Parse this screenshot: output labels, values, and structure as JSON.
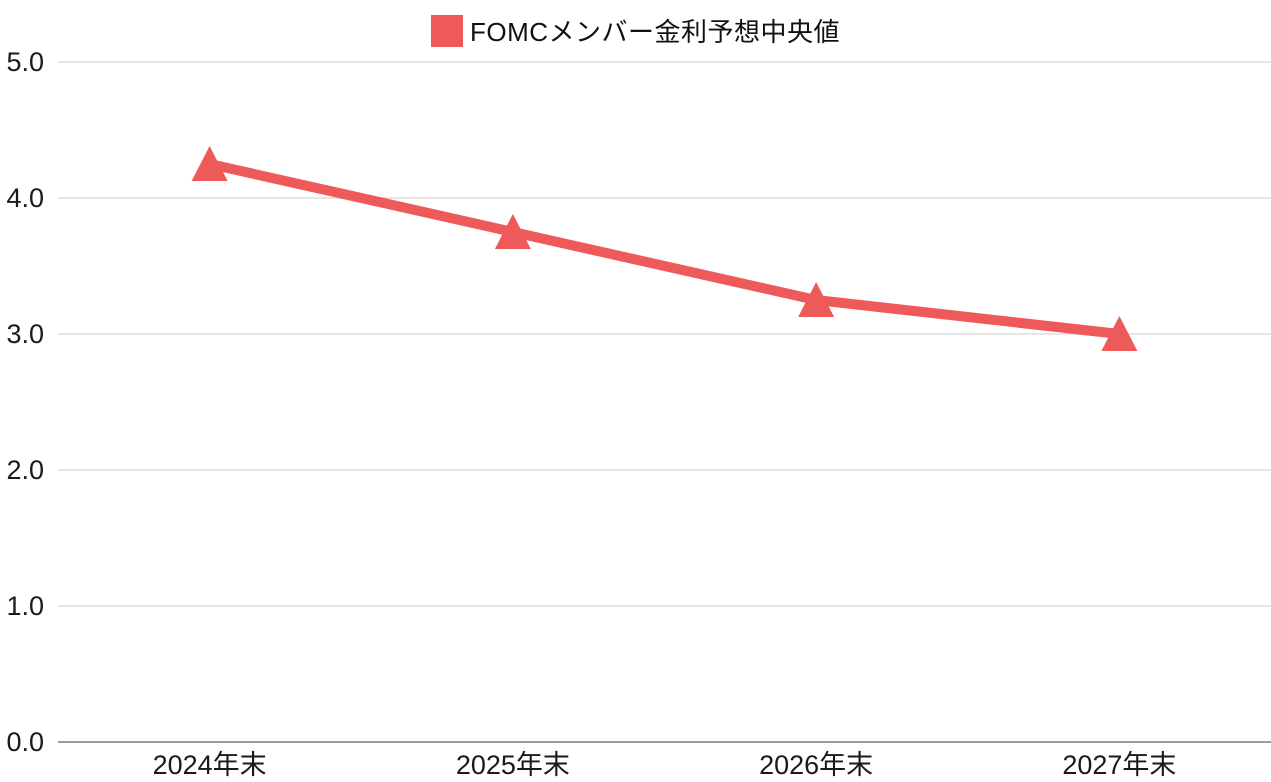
{
  "chart_data": {
    "type": "line",
    "title": "",
    "categories": [
      "2024年末",
      "2025年末",
      "2026年末",
      "2027年末"
    ],
    "series": [
      {
        "name": "FOMCメンバー金利予想中央値",
        "values": [
          4.25,
          3.75,
          3.25,
          3.0
        ],
        "color": "#ee5a5a",
        "marker": "triangle-up"
      }
    ],
    "ylim": [
      0,
      5
    ],
    "yticks": [
      0.0,
      1.0,
      2.0,
      3.0,
      4.0,
      5.0
    ],
    "ytick_format": "one-decimal",
    "xlabel": "",
    "ylabel": "",
    "grid": "horizontal",
    "legend_position": "top-center",
    "colors": {
      "grid_line": "#e6e6e6",
      "axis_line": "#9a9a9a",
      "text": "#1a1a1a",
      "background": "#ffffff"
    }
  }
}
